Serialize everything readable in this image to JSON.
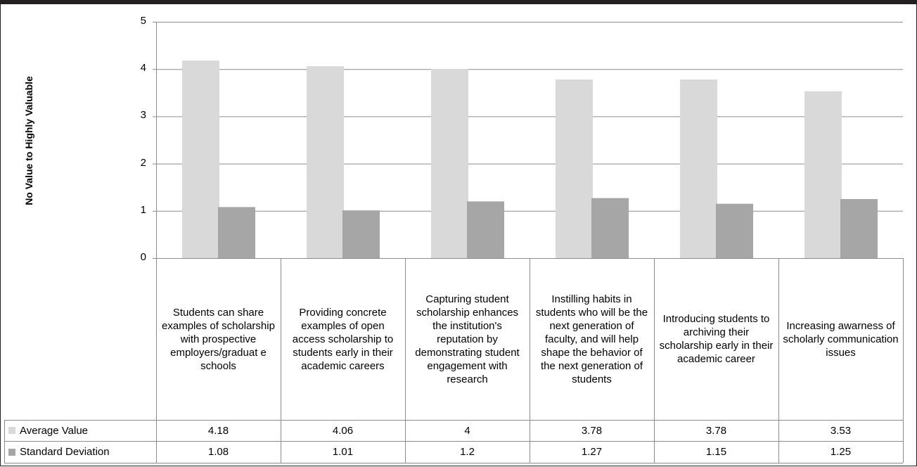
{
  "chart_data": {
    "type": "bar",
    "title": "",
    "xlabel": "",
    "ylabel": "No Value to Highly Valuable",
    "ylim": [
      0,
      5
    ],
    "yticks": [
      0,
      1,
      2,
      3,
      4,
      5
    ],
    "grid": true,
    "legend": "data-table",
    "categories": [
      "Students can share examples of scholarship with prospective employers/graduat e schools",
      "Providing concrete examples of open access scholarship to students early in their academic careers",
      "Capturing student scholarship enhances the institution's reputation by demonstrating student engagement with research",
      "Instilling habits in students who will be the next generation of faculty, and will help shape the behavior of the next generation of students",
      "Introducing students to archiving their scholarship early in their academic career",
      "Increasing awarness of scholarly communication issues"
    ],
    "series": [
      {
        "name": "Average Value",
        "color": "#d9d9d9",
        "values": [
          4.18,
          4.06,
          4,
          3.78,
          3.78,
          3.53
        ]
      },
      {
        "name": "Standard Deviation",
        "color": "#a6a6a6",
        "values": [
          1.08,
          1.01,
          1.2,
          1.27,
          1.15,
          1.25
        ]
      }
    ]
  }
}
